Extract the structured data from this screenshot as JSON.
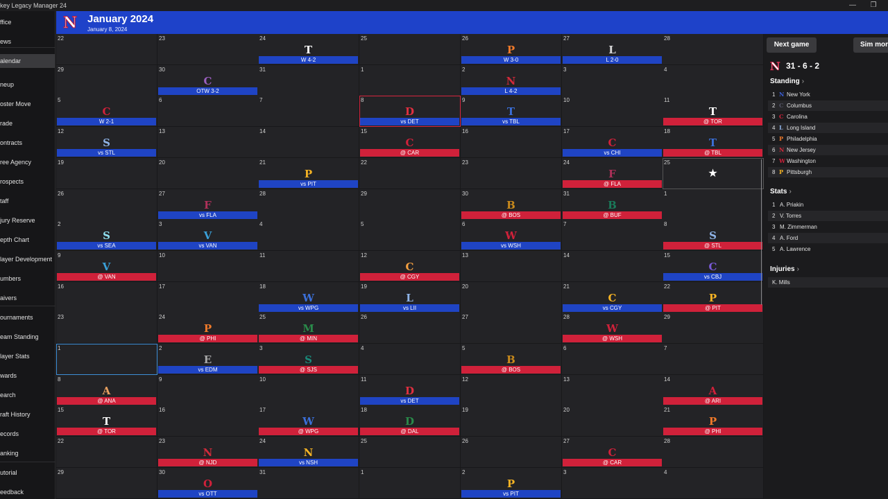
{
  "app": {
    "title": "key Legacy Manager 24"
  },
  "header": {
    "logo": "N",
    "title": "January 2024",
    "subtitle": "January 8, 2024"
  },
  "sidebar": {
    "items": [
      "ffice",
      "ews",
      "alendar",
      "neup",
      "oster Move",
      "rade",
      "ontracts",
      "ree Agency",
      "rospects",
      "taff",
      "jury Reserve",
      "epth Chart",
      "layer Development",
      "umbers",
      "aivers",
      "ournaments",
      "eam Standing",
      "layer Stats",
      "wards",
      "earch",
      "raft History",
      "ecords",
      "anking",
      "utorial",
      "eedback"
    ],
    "active_index": 2
  },
  "calendar": {
    "days": [
      {
        "d": "22"
      },
      {
        "d": "23"
      },
      {
        "d": "24",
        "logo": "T",
        "lc": "#ffffff",
        "bar": "W 4-2",
        "side": "home"
      },
      {
        "d": "25"
      },
      {
        "d": "26",
        "logo": "P",
        "lc": "#f07a2a",
        "bar": "W 3-0",
        "side": "home"
      },
      {
        "d": "27",
        "logo": "L",
        "lc": "#d8d8d8",
        "bar": "L 2-0",
        "side": "home"
      },
      {
        "d": "28"
      },
      {
        "d": "29"
      },
      {
        "d": "30",
        "logo": "C",
        "lc": "#9b5fc0",
        "bar": "OTW 3-2",
        "side": "home"
      },
      {
        "d": "31"
      },
      {
        "d": "1"
      },
      {
        "d": "2",
        "logo": "N",
        "lc": "#d02a3a",
        "bar": "L 4-2",
        "side": "home"
      },
      {
        "d": "3"
      },
      {
        "d": "4"
      },
      {
        "d": "5",
        "logo": "C",
        "lc": "#d0213a",
        "bar": "W 2-1",
        "side": "home"
      },
      {
        "d": "6"
      },
      {
        "d": "7"
      },
      {
        "d": "8",
        "logo": "D",
        "lc": "#e03040",
        "bar": "vs DET",
        "side": "home",
        "today": true
      },
      {
        "d": "9",
        "logo": "T",
        "lc": "#3b6fd8",
        "bar": "vs TBL",
        "side": "home"
      },
      {
        "d": "10"
      },
      {
        "d": "11",
        "logo": "T",
        "lc": "#ffffff",
        "bar": "@ TOR",
        "side": "away"
      },
      {
        "d": "12",
        "logo": "S",
        "lc": "#8fb4e8",
        "bar": "vs STL",
        "side": "home"
      },
      {
        "d": "13"
      },
      {
        "d": "14"
      },
      {
        "d": "15",
        "logo": "C",
        "lc": "#d0213a",
        "bar": "@ CAR",
        "side": "away"
      },
      {
        "d": "16"
      },
      {
        "d": "17",
        "logo": "C",
        "lc": "#d0213a",
        "bar": "vs CHI",
        "side": "home"
      },
      {
        "d": "18",
        "logo": "T",
        "lc": "#3b6fd8",
        "bar": "@ TBL",
        "side": "away"
      },
      {
        "d": "19"
      },
      {
        "d": "20"
      },
      {
        "d": "21",
        "logo": "P",
        "lc": "#f5b324",
        "bar": "vs PIT",
        "side": "home"
      },
      {
        "d": "22"
      },
      {
        "d": "23"
      },
      {
        "d": "24",
        "logo": "F",
        "lc": "#b0305a",
        "bar": "@ FLA",
        "side": "away"
      },
      {
        "d": "25",
        "star": true
      },
      {
        "d": "26"
      },
      {
        "d": "27",
        "logo": "F",
        "lc": "#b0305a",
        "bar": "vs FLA",
        "side": "home"
      },
      {
        "d": "28"
      },
      {
        "d": "29"
      },
      {
        "d": "30",
        "logo": "B",
        "lc": "#c98a1c",
        "bar": "@ BOS",
        "side": "away"
      },
      {
        "d": "31",
        "logo": "B",
        "lc": "#1a7a5a",
        "bar": "@ BUF",
        "side": "away"
      },
      {
        "d": "1"
      },
      {
        "d": "2",
        "logo": "S",
        "lc": "#8fe0f0",
        "bar": "vs SEA",
        "side": "home"
      },
      {
        "d": "3",
        "logo": "V",
        "lc": "#3aa0d8",
        "bar": "vs VAN",
        "side": "home"
      },
      {
        "d": "4"
      },
      {
        "d": "5"
      },
      {
        "d": "6",
        "logo": "W",
        "lc": "#d0213a",
        "bar": "vs WSH",
        "side": "home"
      },
      {
        "d": "7"
      },
      {
        "d": "8",
        "logo": "S",
        "lc": "#8fb4e8",
        "bar": "@ STL",
        "side": "away"
      },
      {
        "d": "9",
        "logo": "V",
        "lc": "#3aa0d8",
        "bar": "@ VAN",
        "side": "away"
      },
      {
        "d": "10"
      },
      {
        "d": "11"
      },
      {
        "d": "12",
        "logo": "C",
        "lc": "#f5a040",
        "bar": "@ CGY",
        "side": "away"
      },
      {
        "d": "13"
      },
      {
        "d": "14"
      },
      {
        "d": "15",
        "logo": "C",
        "lc": "#7a5ad8",
        "bar": "vs CBJ",
        "side": "home"
      },
      {
        "d": "16"
      },
      {
        "d": "17"
      },
      {
        "d": "18",
        "logo": "W",
        "lc": "#3b6fd8",
        "bar": "vs WPG",
        "side": "home"
      },
      {
        "d": "19",
        "logo": "L",
        "lc": "#8fb4e8",
        "bar": "vs LII",
        "side": "home"
      },
      {
        "d": "20"
      },
      {
        "d": "21",
        "logo": "C",
        "lc": "#f5b324",
        "bar": "vs CGY",
        "side": "home"
      },
      {
        "d": "22",
        "logo": "P",
        "lc": "#f5b324",
        "bar": "@ PIT",
        "side": "away"
      },
      {
        "d": "23"
      },
      {
        "d": "24",
        "logo": "P",
        "lc": "#f07a2a",
        "bar": "@ PHI",
        "side": "away"
      },
      {
        "d": "25",
        "logo": "M",
        "lc": "#2a8a4a",
        "bar": "@ MIN",
        "side": "away"
      },
      {
        "d": "26"
      },
      {
        "d": "27"
      },
      {
        "d": "28",
        "logo": "W",
        "lc": "#d0213a",
        "bar": "@ WSH",
        "side": "away"
      },
      {
        "d": "29"
      },
      {
        "d": "1",
        "selected": true
      },
      {
        "d": "2",
        "logo": "E",
        "lc": "#aaaaaa",
        "bar": "vs EDM",
        "side": "home"
      },
      {
        "d": "3",
        "logo": "S",
        "lc": "#1a8a7a",
        "bar": "@ SJS",
        "side": "away"
      },
      {
        "d": "4"
      },
      {
        "d": "5",
        "logo": "B",
        "lc": "#c98a1c",
        "bar": "@ BOS",
        "side": "away"
      },
      {
        "d": "6"
      },
      {
        "d": "7"
      },
      {
        "d": "8",
        "logo": "A",
        "lc": "#e8a060",
        "bar": "@ ANA",
        "side": "away"
      },
      {
        "d": "9"
      },
      {
        "d": "10"
      },
      {
        "d": "11",
        "logo": "D",
        "lc": "#e03040",
        "bar": "vs DET",
        "side": "home"
      },
      {
        "d": "12"
      },
      {
        "d": "13"
      },
      {
        "d": "14",
        "logo": "A",
        "lc": "#d0213a",
        "bar": "@ ARI",
        "side": "away"
      },
      {
        "d": "15",
        "logo": "T",
        "lc": "#ffffff",
        "bar": "@ TOR",
        "side": "away"
      },
      {
        "d": "16"
      },
      {
        "d": "17",
        "logo": "W",
        "lc": "#3b6fd8",
        "bar": "@ WPG",
        "side": "away"
      },
      {
        "d": "18",
        "logo": "D",
        "lc": "#2a8a4a",
        "bar": "@ DAL",
        "side": "away"
      },
      {
        "d": "19"
      },
      {
        "d": "20"
      },
      {
        "d": "21",
        "logo": "P",
        "lc": "#f07a2a",
        "bar": "@ PHI",
        "side": "away"
      },
      {
        "d": "22"
      },
      {
        "d": "23",
        "logo": "N",
        "lc": "#d02a3a",
        "bar": "@ NJD",
        "side": "away"
      },
      {
        "d": "24",
        "logo": "N",
        "lc": "#f5b324",
        "bar": "vs NSH",
        "side": "home"
      },
      {
        "d": "25"
      },
      {
        "d": "26"
      },
      {
        "d": "27",
        "logo": "C",
        "lc": "#d0213a",
        "bar": "@ CAR",
        "side": "away"
      },
      {
        "d": "28"
      },
      {
        "d": "29"
      },
      {
        "d": "30",
        "logo": "O",
        "lc": "#d0213a",
        "bar": "vs OTT",
        "side": "home"
      },
      {
        "d": "31"
      },
      {
        "d": "1"
      },
      {
        "d": "2",
        "logo": "P",
        "lc": "#f5b324",
        "bar": "vs PIT",
        "side": "home"
      },
      {
        "d": "3"
      },
      {
        "d": "4"
      }
    ]
  },
  "panel": {
    "next_game": "Next game",
    "sim": "Sim mor",
    "record": "31 - 6 - 2",
    "standing_title": "Standing",
    "standing": [
      {
        "n": "1",
        "ic": "N",
        "c": "#3b5fd8",
        "name": "New York"
      },
      {
        "n": "2",
        "ic": "C",
        "c": "#556",
        "name": "Columbus"
      },
      {
        "n": "3",
        "ic": "C",
        "c": "#d0213a",
        "name": "Carolina"
      },
      {
        "n": "4",
        "ic": "L",
        "c": "#8fb4e8",
        "name": "Long Island"
      },
      {
        "n": "5",
        "ic": "P",
        "c": "#f07a2a",
        "name": "Philadelphia"
      },
      {
        "n": "6",
        "ic": "N",
        "c": "#d02a3a",
        "name": "New Jersey"
      },
      {
        "n": "7",
        "ic": "W",
        "c": "#d0213a",
        "name": "Washington"
      },
      {
        "n": "8",
        "ic": "P",
        "c": "#f5b324",
        "name": "Pittsburgh"
      }
    ],
    "stats_title": "Stats",
    "stats": [
      {
        "n": "1",
        "name": "A. Priakin"
      },
      {
        "n": "2",
        "name": "V. Torres"
      },
      {
        "n": "3",
        "name": "M. Zimmerman"
      },
      {
        "n": "4",
        "name": "A. Ford"
      },
      {
        "n": "5",
        "name": "A. Lawrence"
      }
    ],
    "injuries_title": "Injuries",
    "injuries": [
      {
        "name": "K. Mills"
      }
    ]
  }
}
